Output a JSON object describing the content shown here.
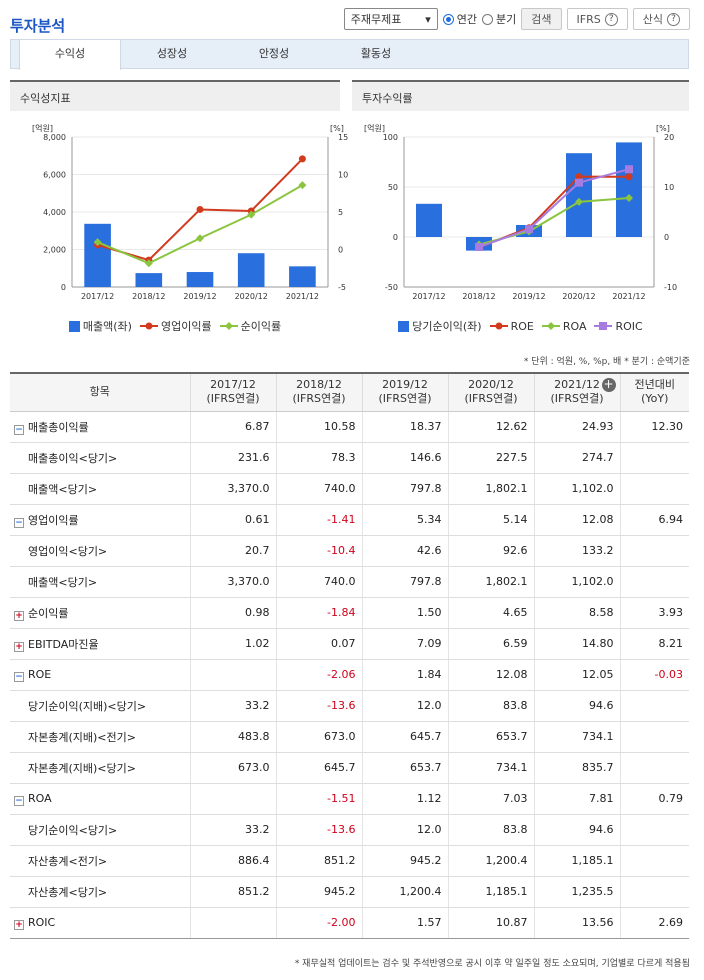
{
  "title": "투자분석",
  "controls": {
    "select_value": "주재무제표",
    "radio_annual": "연간",
    "radio_quarter": "분기",
    "search_label": "검색",
    "ifrs_label": "IFRS",
    "formula_label": "산식"
  },
  "tabs": [
    "수익성",
    "성장성",
    "안정성",
    "활동성"
  ],
  "chart1": {
    "header": "수익성지표",
    "left_unit": "[억원]",
    "right_unit": "[%]",
    "left_ticks": [
      "8,000",
      "6,000",
      "4,000",
      "2,000",
      "0"
    ],
    "right_ticks": [
      "15",
      "10",
      "5",
      "0",
      "-5"
    ],
    "legend": [
      "매출액(좌)",
      "영업이익률",
      "순이익률"
    ]
  },
  "chart2": {
    "header": "투자수익률",
    "left_unit": "[억원]",
    "right_unit": "[%]",
    "left_ticks": [
      "100",
      "50",
      "0",
      "-50"
    ],
    "right_ticks": [
      "20",
      "10",
      "0",
      "-10"
    ],
    "legend": [
      "당기순이익(좌)",
      "ROE",
      "ROA",
      "ROIC"
    ]
  },
  "chart_data": [
    {
      "type": "bar",
      "title": "수익성지표",
      "categories": [
        "2017/12",
        "2018/12",
        "2019/12",
        "2020/12",
        "2021/12"
      ],
      "ylim_left": [
        0,
        8000
      ],
      "ylim_right": [
        -5,
        15
      ],
      "series": [
        {
          "name": "매출액(좌)",
          "type": "bar",
          "axis": "left",
          "color": "#2a6fde",
          "values": [
            3370.0,
            740.0,
            797.8,
            1802.1,
            1102.0
          ]
        },
        {
          "name": "영업이익률",
          "type": "line",
          "axis": "right",
          "color": "#d23a1e",
          "values": [
            0.61,
            -1.41,
            5.34,
            5.14,
            12.08
          ]
        },
        {
          "name": "순이익률",
          "type": "line",
          "axis": "right",
          "color": "#8bc53f",
          "values": [
            0.98,
            -1.84,
            1.5,
            4.65,
            8.58
          ]
        }
      ]
    },
    {
      "type": "bar",
      "title": "투자수익률",
      "categories": [
        "2017/12",
        "2018/12",
        "2019/12",
        "2020/12",
        "2021/12"
      ],
      "ylim_left": [
        -50,
        100
      ],
      "ylim_right": [
        -10,
        20
      ],
      "series": [
        {
          "name": "당기순이익(좌)",
          "type": "bar",
          "axis": "left",
          "color": "#2a6fde",
          "values": [
            33.2,
            -13.6,
            12.0,
            83.8,
            94.6
          ]
        },
        {
          "name": "ROE",
          "type": "line",
          "axis": "right",
          "color": "#d23a1e",
          "values": [
            null,
            -2.06,
            1.84,
            12.08,
            12.05
          ]
        },
        {
          "name": "ROA",
          "type": "line",
          "axis": "right",
          "color": "#8bc53f",
          "values": [
            null,
            -1.51,
            1.12,
            7.03,
            7.81
          ]
        },
        {
          "name": "ROIC",
          "type": "line",
          "axis": "right",
          "color": "#a87be0",
          "values": [
            null,
            -2.0,
            1.57,
            10.87,
            13.56
          ]
        }
      ]
    }
  ],
  "unit_note": "* 단위 : 억원, %, %p, 배   * 분기 : 순액기준",
  "table": {
    "headers": [
      "항목",
      "2017/12\n(IFRS연결)",
      "2018/12\n(IFRS연결)",
      "2019/12\n(IFRS연결)",
      "2020/12\n(IFRS연결)",
      "2021/12\n(IFRS연결)",
      "전년대비\n(YoY)"
    ],
    "rows": [
      {
        "label": "매출총이익률",
        "level": 0,
        "toggle": "minus",
        "values": [
          "6.87",
          "10.58",
          "18.37",
          "12.62",
          "24.93",
          "12.30"
        ]
      },
      {
        "label": "매출총이익<당기>",
        "level": 1,
        "values": [
          "231.6",
          "78.3",
          "146.6",
          "227.5",
          "274.7",
          ""
        ]
      },
      {
        "label": "매출액<당기>",
        "level": 1,
        "values": [
          "3,370.0",
          "740.0",
          "797.8",
          "1,802.1",
          "1,102.0",
          ""
        ]
      },
      {
        "label": "영업이익률",
        "level": 0,
        "toggle": "minus",
        "values": [
          "0.61",
          "-1.41",
          "5.34",
          "5.14",
          "12.08",
          "6.94"
        ]
      },
      {
        "label": "영업이익<당기>",
        "level": 1,
        "values": [
          "20.7",
          "-10.4",
          "42.6",
          "92.6",
          "133.2",
          ""
        ]
      },
      {
        "label": "매출액<당기>",
        "level": 1,
        "values": [
          "3,370.0",
          "740.0",
          "797.8",
          "1,802.1",
          "1,102.0",
          ""
        ]
      },
      {
        "label": "순이익률",
        "level": 0,
        "toggle": "plus",
        "values": [
          "0.98",
          "-1.84",
          "1.50",
          "4.65",
          "8.58",
          "3.93"
        ]
      },
      {
        "label": "EBITDA마진율",
        "level": 0,
        "toggle": "plus",
        "values": [
          "1.02",
          "0.07",
          "7.09",
          "6.59",
          "14.80",
          "8.21"
        ]
      },
      {
        "label": "ROE",
        "level": 0,
        "toggle": "minus",
        "values": [
          "",
          "-2.06",
          "1.84",
          "12.08",
          "12.05",
          "-0.03"
        ]
      },
      {
        "label": "당기순이익(지배)<당기>",
        "level": 1,
        "values": [
          "33.2",
          "-13.6",
          "12.0",
          "83.8",
          "94.6",
          ""
        ]
      },
      {
        "label": "자본총계(지배)<전기>",
        "level": 1,
        "values": [
          "483.8",
          "673.0",
          "645.7",
          "653.7",
          "734.1",
          ""
        ]
      },
      {
        "label": "자본총계(지배)<당기>",
        "level": 1,
        "values": [
          "673.0",
          "645.7",
          "653.7",
          "734.1",
          "835.7",
          ""
        ]
      },
      {
        "label": "ROA",
        "level": 0,
        "toggle": "minus",
        "values": [
          "",
          "-1.51",
          "1.12",
          "7.03",
          "7.81",
          "0.79"
        ]
      },
      {
        "label": "당기순이익<당기>",
        "level": 1,
        "values": [
          "33.2",
          "-13.6",
          "12.0",
          "83.8",
          "94.6",
          ""
        ]
      },
      {
        "label": "자산총계<전기>",
        "level": 1,
        "values": [
          "886.4",
          "851.2",
          "945.2",
          "1,200.4",
          "1,185.1",
          ""
        ]
      },
      {
        "label": "자산총계<당기>",
        "level": 1,
        "values": [
          "851.2",
          "945.2",
          "1,200.4",
          "1,185.1",
          "1,235.5",
          ""
        ]
      },
      {
        "label": "ROIC",
        "level": 0,
        "toggle": "plus",
        "values": [
          "",
          "-2.00",
          "1.57",
          "10.87",
          "13.56",
          "2.69"
        ]
      }
    ]
  },
  "footnote": "* 재무실적 업데이트는 검수 및 주석반영으로 공시 이후 약 일주일 정도 소요되며, 기업별로 다르게 적용됨"
}
